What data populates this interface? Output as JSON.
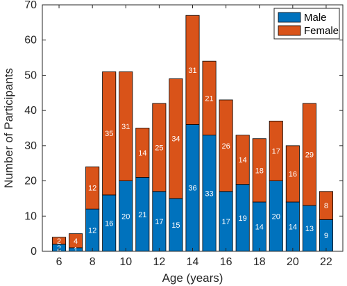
{
  "chart_data": {
    "type": "bar",
    "stacked": true,
    "x": [
      6,
      7,
      8,
      9,
      10,
      11,
      12,
      13,
      14,
      15,
      16,
      17,
      18,
      19,
      20,
      21,
      22
    ],
    "series": [
      {
        "name": "Male",
        "color": "#0072BD",
        "values": [
          2,
          1,
          12,
          16,
          20,
          21,
          17,
          15,
          36,
          33,
          17,
          19,
          14,
          20,
          14,
          13,
          9
        ]
      },
      {
        "name": "Female",
        "color": "#D95319",
        "values": [
          2,
          4,
          12,
          35,
          31,
          14,
          25,
          34,
          31,
          21,
          26,
          14,
          18,
          17,
          16,
          29,
          8
        ]
      }
    ],
    "xlabel": "Age (years)",
    "ylabel": "Number of Participants",
    "xlim": [
      5,
      23
    ],
    "ylim": [
      0,
      70
    ],
    "xticks": [
      6,
      8,
      10,
      12,
      14,
      16,
      18,
      20,
      22
    ],
    "yticks": [
      0,
      10,
      20,
      30,
      40,
      50,
      60,
      70
    ],
    "grid": false,
    "legend_position": "top-right"
  }
}
